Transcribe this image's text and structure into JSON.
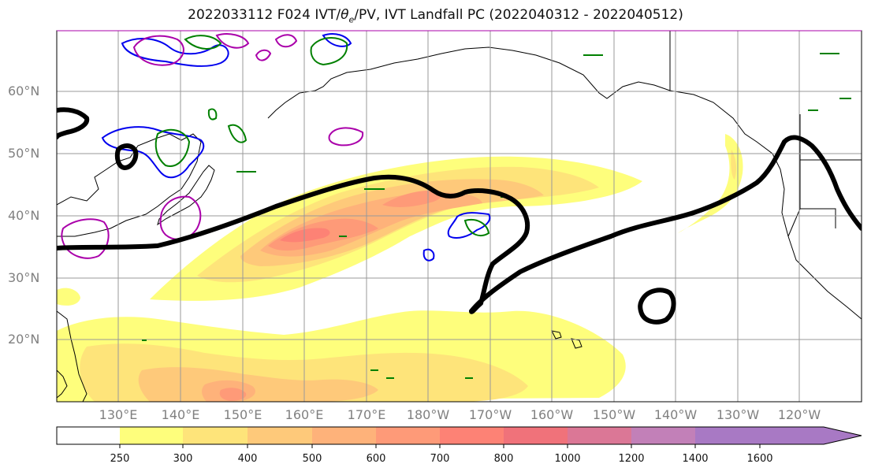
{
  "title": {
    "main": "2022033112 F024 IVT/",
    "theta": "θ",
    "sub": "e",
    "rest": "/PV, IVT Landfall PC (2022040312 - 2022040512)"
  },
  "lat_labels": [
    "60°N",
    "50°N",
    "40°N",
    "30°N",
    "20°N"
  ],
  "lon_labels": [
    "130°E",
    "140°E",
    "150°E",
    "160°E",
    "170°E",
    "180°W",
    "170°W",
    "160°W",
    "150°W",
    "140°W",
    "130°W",
    "120°W"
  ],
  "colorbar": {
    "ticks": [
      "250",
      "300",
      "400",
      "500",
      "600",
      "700",
      "800",
      "1000",
      "1200",
      "1400",
      "1600"
    ],
    "colors": [
      "#ffffff",
      "#fefe7c",
      "#fee47a",
      "#fec97a",
      "#feb27a",
      "#fe9a78",
      "#fd8275",
      "#f0727a",
      "#db7796",
      "#c280b8",
      "#a879c4"
    ],
    "extend": "max"
  },
  "contour_colors": {
    "landfall_pc": "#000000",
    "theta_e": "#0000ee",
    "pv": "#aa00aa",
    "other": "#008000"
  }
}
